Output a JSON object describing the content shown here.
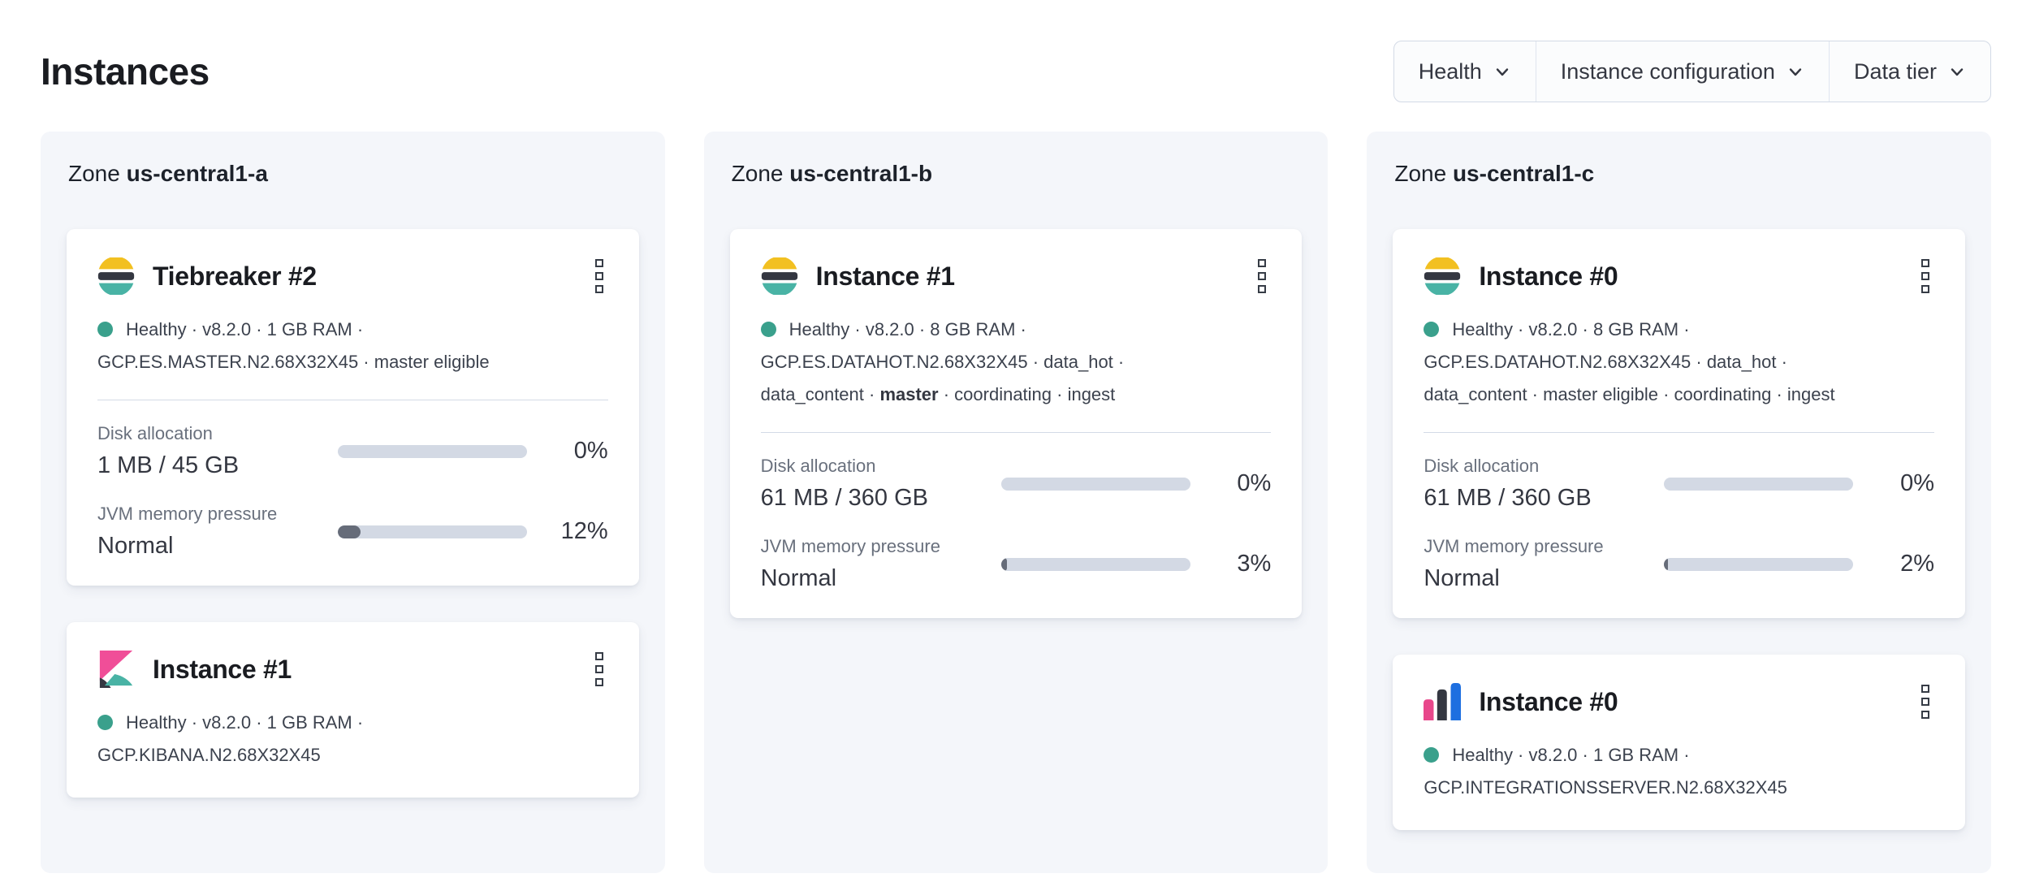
{
  "page": {
    "title": "Instances"
  },
  "filter_bar": {
    "chevron_icon": "chevron-down-icon",
    "items": [
      {
        "label": "Health"
      },
      {
        "label": "Instance configuration"
      },
      {
        "label": "Data tier"
      }
    ]
  },
  "colors": {
    "health_ok": "#3aa08c",
    "bar_track": "#d3d9e4",
    "bar_fill": "#666c79",
    "zone_bg": "#f4f6fa",
    "es_yellow": "#fec514",
    "es_dark": "#343741",
    "es_teal": "#49b3a5",
    "kibana_pink": "#f04e98",
    "integrations_pink": "#e8478b",
    "integrations_blue": "#1e6fe0"
  },
  "zones": [
    {
      "prefix": "Zone",
      "name": "us-central1-a",
      "cards": [
        {
          "icon": "elasticsearch-logo",
          "menu_icon": "boxes-vertical-icon",
          "title": "Tiebreaker #2",
          "status_lines": [
            {
              "pre": "Healthy · v8.2.0 · 1 GB RAM ·",
              "bold": "",
              "post": ""
            },
            {
              "pre": "GCP.ES.MASTER.N2.68X32X45 · master eligible",
              "bold": "",
              "post": ""
            }
          ],
          "metrics": [
            {
              "label": "Disk allocation",
              "value": "1 MB / 45 GB",
              "percent": "0%",
              "fill_pct": 0
            },
            {
              "label": "JVM memory pressure",
              "value": "Normal",
              "percent": "12%",
              "fill_pct": 12
            }
          ]
        },
        {
          "icon": "kibana-logo",
          "menu_icon": "boxes-vertical-icon",
          "title": "Instance #1",
          "status_lines": [
            {
              "pre": "Healthy · v8.2.0 · 1 GB RAM ·",
              "bold": "",
              "post": ""
            },
            {
              "pre": "GCP.KIBANA.N2.68X32X45",
              "bold": "",
              "post": ""
            }
          ]
        }
      ]
    },
    {
      "prefix": "Zone",
      "name": "us-central1-b",
      "cards": [
        {
          "icon": "elasticsearch-logo",
          "menu_icon": "boxes-vertical-icon",
          "title": "Instance #1",
          "status_lines": [
            {
              "pre": "Healthy · v8.2.0 · 8 GB RAM ·",
              "bold": "",
              "post": ""
            },
            {
              "pre": "GCP.ES.DATAHOT.N2.68X32X45 · data_hot ·",
              "bold": "",
              "post": ""
            },
            {
              "pre": "data_content · ",
              "bold": "master",
              "post": " · coordinating · ingest"
            }
          ],
          "metrics": [
            {
              "label": "Disk allocation",
              "value": "61 MB / 360 GB",
              "percent": "0%",
              "fill_pct": 0
            },
            {
              "label": "JVM memory pressure",
              "value": "Normal",
              "percent": "3%",
              "fill_pct": 3
            }
          ]
        }
      ]
    },
    {
      "prefix": "Zone",
      "name": "us-central1-c",
      "cards": [
        {
          "icon": "elasticsearch-logo",
          "menu_icon": "boxes-vertical-icon",
          "title": "Instance #0",
          "status_lines": [
            {
              "pre": "Healthy · v8.2.0 · 8 GB RAM ·",
              "bold": "",
              "post": ""
            },
            {
              "pre": "GCP.ES.DATAHOT.N2.68X32X45 · data_hot ·",
              "bold": "",
              "post": ""
            },
            {
              "pre": "data_content · master eligible · coordinating · ingest",
              "bold": "",
              "post": ""
            }
          ],
          "metrics": [
            {
              "label": "Disk allocation",
              "value": "61 MB / 360 GB",
              "percent": "0%",
              "fill_pct": 0
            },
            {
              "label": "JVM memory pressure",
              "value": "Normal",
              "percent": "2%",
              "fill_pct": 2
            }
          ]
        },
        {
          "icon": "integrations-server-logo",
          "menu_icon": "boxes-vertical-icon",
          "title": "Instance #0",
          "status_lines": [
            {
              "pre": "Healthy · v8.2.0 · 1 GB RAM ·",
              "bold": "",
              "post": ""
            },
            {
              "pre": "GCP.INTEGRATIONSSERVER.N2.68X32X45",
              "bold": "",
              "post": ""
            }
          ]
        }
      ]
    }
  ]
}
